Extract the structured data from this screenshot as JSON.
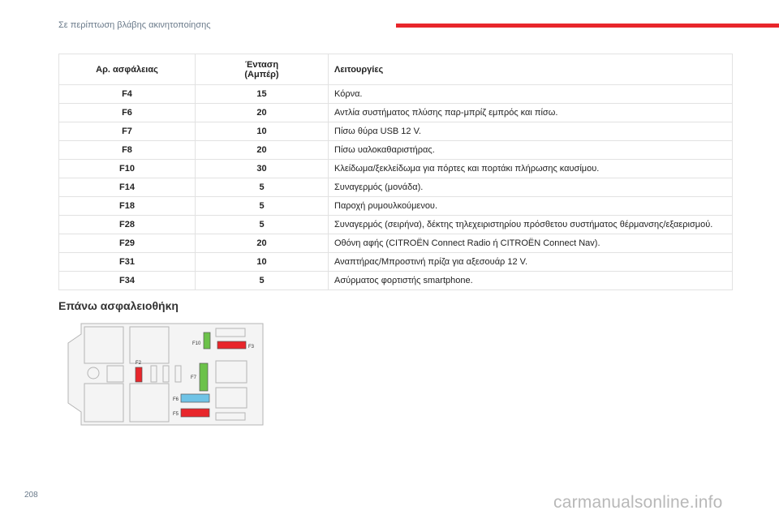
{
  "header": {
    "title": "Σε περίπτωση βλάβης ακινητοποίησης"
  },
  "table": {
    "headers": {
      "fuse": "Αρ. ασφάλειας",
      "amperage_line1": "Ένταση",
      "amperage_line2": "(Αμπέρ)",
      "functions": "Λειτουργίες"
    },
    "rows": [
      {
        "fuse": "F4",
        "amps": "15",
        "function": "Κόρνα."
      },
      {
        "fuse": "F6",
        "amps": "20",
        "function": "Αντλία συστήματος πλύσης παρ-μπρίζ εμπρός και πίσω."
      },
      {
        "fuse": "F7",
        "amps": "10",
        "function": "Πίσω θύρα USB 12 V."
      },
      {
        "fuse": "F8",
        "amps": "20",
        "function": "Πίσω υαλοκαθαριστήρας."
      },
      {
        "fuse": "F10",
        "amps": "30",
        "function": "Κλείδωμα/ξεκλείδωμα για πόρτες και πορτάκι πλήρωσης καυσίμου."
      },
      {
        "fuse": "F14",
        "amps": "5",
        "function": "Συναγερμός (μονάδα)."
      },
      {
        "fuse": "F18",
        "amps": "5",
        "function": "Παροχή ρυμουλκούμενου."
      },
      {
        "fuse": "F28",
        "amps": "5",
        "function": "Συναγερμός (σειρήνα), δέκτης τηλεχειριστηρίου πρόσθετου συστήματος θέρμανσης/εξαερισμού."
      },
      {
        "fuse": "F29",
        "amps": "20",
        "function": "Οθόνη αφής (CITROËN Connect Radio ή CITROËN Connect Nav)."
      },
      {
        "fuse": "F31",
        "amps": "10",
        "function": "Αναπτήρας/Μπροστινή πρίζα για αξεσουάρ 12 V."
      },
      {
        "fuse": "F34",
        "amps": "5",
        "function": "Ασύρματος φορτιστής smartphone."
      }
    ]
  },
  "section": {
    "title": "Επάνω ασφαλειοθήκη"
  },
  "diagram": {
    "labels": {
      "f10": "F10",
      "f3": "F3",
      "f2": "F2",
      "f7": "F7",
      "f6": "F6",
      "f5": "F5"
    },
    "colors": {
      "red": "#e8262b",
      "green": "#6cc24a",
      "blue": "#6fc3e6",
      "outline": "#b5b5b5"
    }
  },
  "footer": {
    "page_number": "208",
    "watermark": "carmanualsonline.info"
  }
}
